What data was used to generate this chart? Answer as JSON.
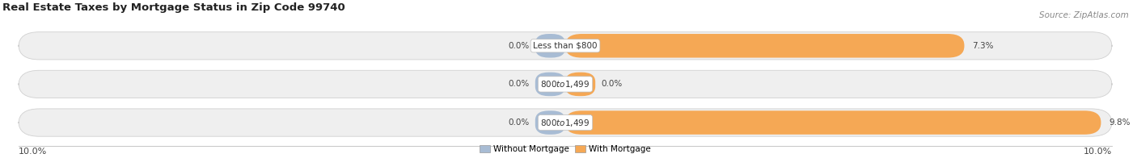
{
  "title": "Real Estate Taxes by Mortgage Status in Zip Code 99740",
  "source": "Source: ZipAtlas.com",
  "bars": [
    {
      "label": "Less than $800",
      "without_mortgage": 0.0,
      "with_mortgage": 7.3
    },
    {
      "label": "$800 to $1,499",
      "without_mortgage": 0.0,
      "with_mortgage": 0.0
    },
    {
      "label": "$800 to $1,499",
      "without_mortgage": 0.0,
      "with_mortgage": 9.8
    }
  ],
  "x_min": -10.0,
  "x_max": 10.0,
  "x_left_label": "10.0%",
  "x_right_label": "10.0%",
  "color_without": "#a8bcd4",
  "color_with": "#f5a855",
  "bar_bg_color": "#efefef",
  "bar_border_color": "#d0d0d0",
  "legend_without": "Without Mortgage",
  "legend_with": "With Mortgage",
  "title_fontsize": 9.5,
  "source_fontsize": 7.5,
  "label_fontsize": 7.5,
  "pct_fontsize": 7.5,
  "tick_fontsize": 8
}
